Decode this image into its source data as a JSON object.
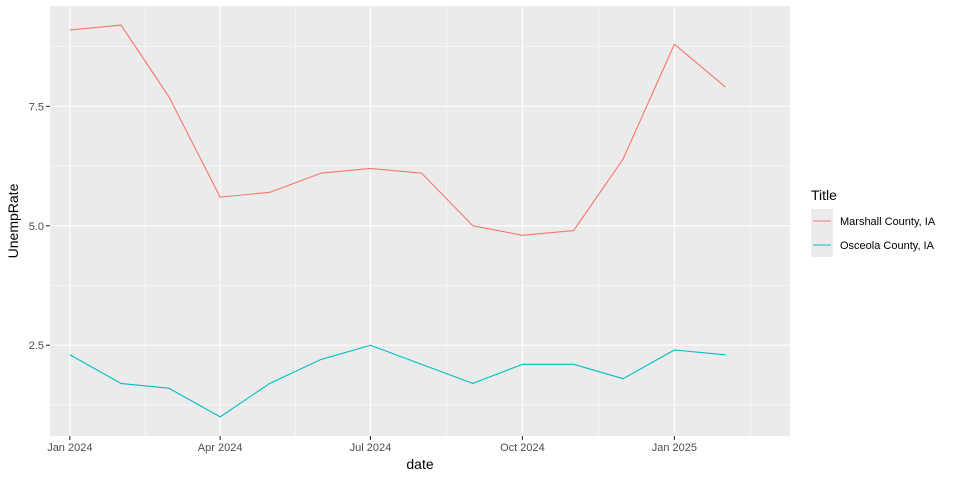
{
  "chart_data": {
    "type": "line",
    "xlabel": "date",
    "ylabel": "UnempRate",
    "x": [
      "2024-01-01",
      "2024-02-01",
      "2024-03-01",
      "2024-04-01",
      "2024-05-01",
      "2024-06-01",
      "2024-07-01",
      "2024-08-01",
      "2024-09-01",
      "2024-10-01",
      "2024-11-01",
      "2024-12-01",
      "2025-01-01",
      "2025-02-01"
    ],
    "series": [
      {
        "name": "Marshall County, IA",
        "color": "#F8766D",
        "values": [
          9.1,
          9.2,
          7.7,
          5.6,
          5.7,
          6.1,
          6.2,
          6.1,
          5.0,
          4.8,
          4.9,
          6.4,
          8.8,
          7.9
        ]
      },
      {
        "name": "Osceola County, IA",
        "color": "#00BFC4",
        "values": [
          2.3,
          1.7,
          1.6,
          1.0,
          1.7,
          2.2,
          2.5,
          2.1,
          1.7,
          2.1,
          2.1,
          1.8,
          2.4,
          2.3
        ]
      }
    ],
    "x_ticks": [
      {
        "value": "2024-01-01",
        "label": "Jan 2024"
      },
      {
        "value": "2024-04-01",
        "label": "Apr 2024"
      },
      {
        "value": "2024-07-01",
        "label": "Jul 2024"
      },
      {
        "value": "2024-10-01",
        "label": "Oct 2024"
      },
      {
        "value": "2025-01-01",
        "label": "Jan 2025"
      }
    ],
    "y_ticks": [
      {
        "value": 2.5,
        "label": "2.5"
      },
      {
        "value": 5.0,
        "label": "5.0"
      },
      {
        "value": 7.5,
        "label": "7.5"
      }
    ],
    "xlim": [
      "2023-12-20",
      "2025-03-12"
    ],
    "ylim": [
      0.6,
      9.6
    ],
    "grid": true,
    "legend": {
      "title": "Title",
      "placement": "right"
    },
    "colors": {
      "panel": "#EBEBEB",
      "grid": "#FFFFFF"
    }
  }
}
